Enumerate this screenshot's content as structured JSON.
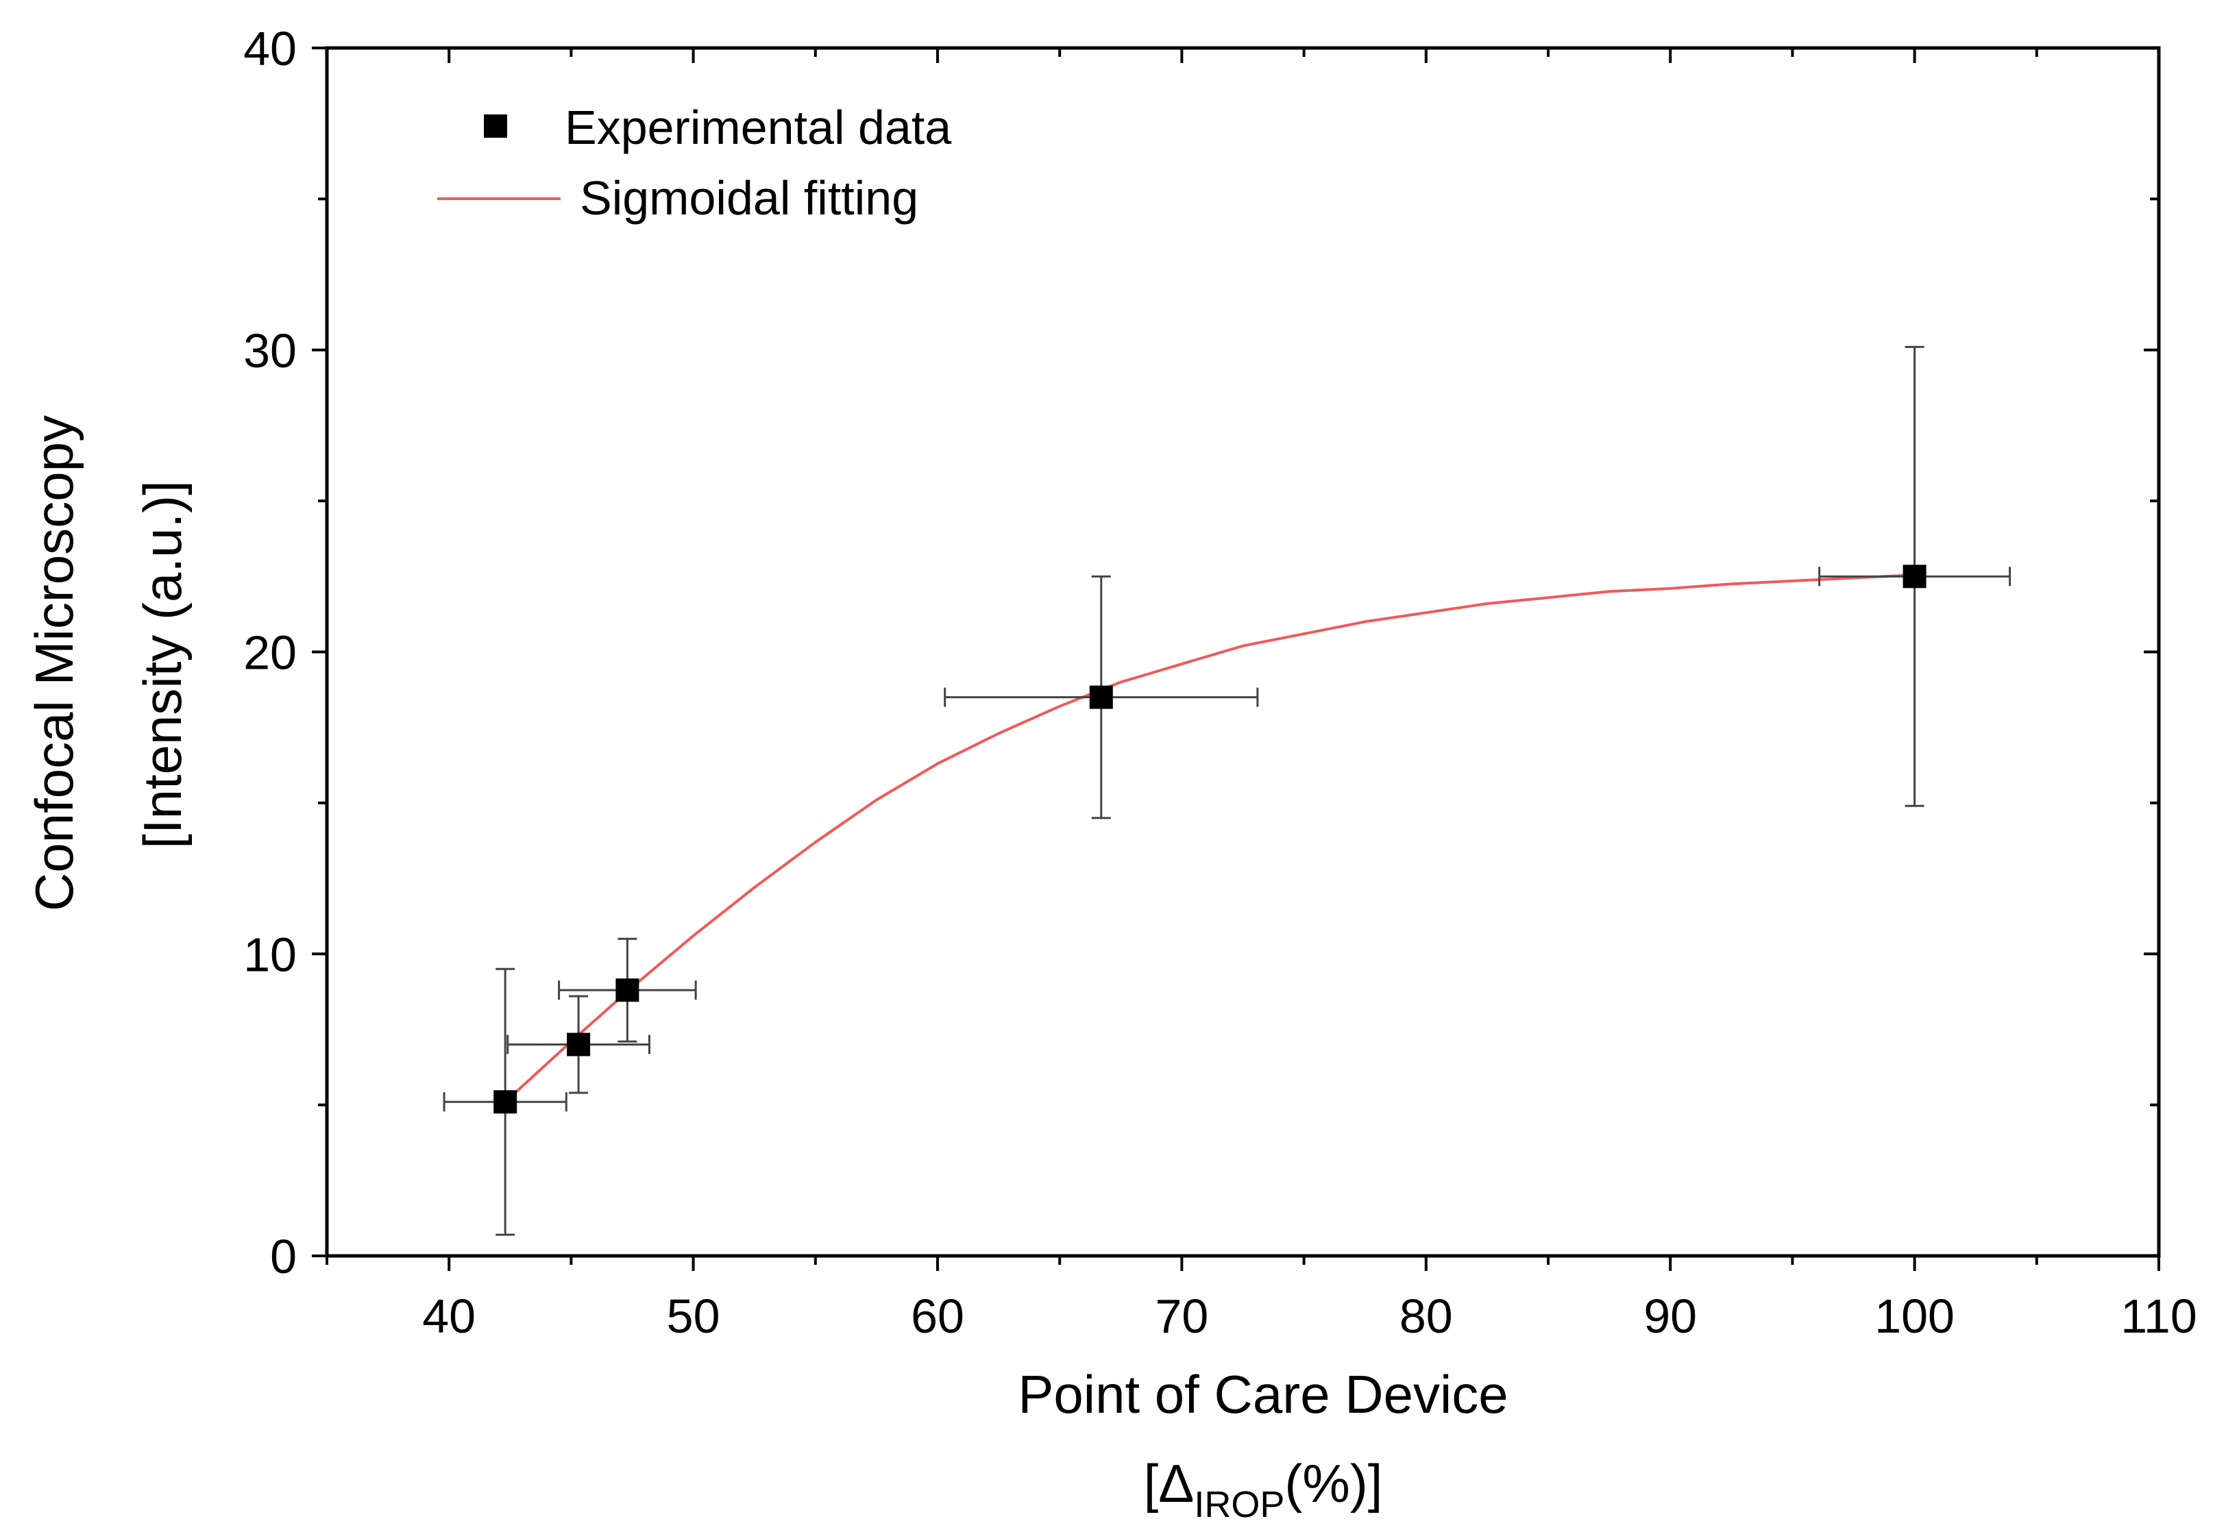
{
  "chart_data": {
    "type": "scatter",
    "title": "",
    "xlabel": "Point of Care Device",
    "xlabel_sub": {
      "open": "[",
      "symbol": "Δ",
      "subscript": "IROP",
      "rest": "(%)",
      "close": "]"
    },
    "ylabel": "Confocal Microscopy",
    "ylabel_sub": "[Intensity (a.u.)]",
    "xlim": [
      35,
      110
    ],
    "ylim": [
      0,
      40
    ],
    "x_ticks": [
      40,
      50,
      60,
      70,
      80,
      90,
      100,
      110
    ],
    "y_ticks": [
      0,
      10,
      20,
      30,
      40
    ],
    "x_minor_step": 5,
    "y_minor_step": 5,
    "grid": false,
    "legend_position": "top-left",
    "legend": [
      {
        "label": "Experimental data",
        "marker": "square",
        "color": "#000000"
      },
      {
        "label": "Sigmoidal fitting",
        "marker": "line",
        "color": "#f05a5a"
      }
    ],
    "series": [
      {
        "name": "Experimental data",
        "color": "#000000",
        "points": [
          {
            "x": 42.3,
            "y": 5.1,
            "xerr": 2.5,
            "yerr": 4.4
          },
          {
            "x": 45.3,
            "y": 7.0,
            "xerr": 2.9,
            "yerr": 1.6
          },
          {
            "x": 47.3,
            "y": 8.8,
            "xerr": 2.8,
            "yerr": 1.7
          },
          {
            "x": 66.7,
            "y": 18.5,
            "xerr": 6.4,
            "yerr": 4.0
          },
          {
            "x": 100.0,
            "y": 22.5,
            "xerr": 3.9,
            "yerr": 7.6
          }
        ]
      },
      {
        "name": "Sigmoidal fitting",
        "color": "#f05a5a",
        "type": "line",
        "x": [
          42.3,
          45,
          47.5,
          50,
          52.5,
          55,
          57.5,
          60,
          62.5,
          65,
          67.5,
          70,
          72.5,
          75,
          77.5,
          80,
          82.5,
          85,
          87.5,
          90,
          92.5,
          95,
          97.5,
          100
        ],
        "y": [
          5.1,
          7.1,
          8.9,
          10.6,
          12.2,
          13.7,
          15.1,
          16.3,
          17.3,
          18.2,
          19.0,
          19.6,
          20.2,
          20.6,
          21.0,
          21.3,
          21.6,
          21.8,
          22.0,
          22.1,
          22.25,
          22.35,
          22.45,
          22.55
        ]
      }
    ]
  }
}
